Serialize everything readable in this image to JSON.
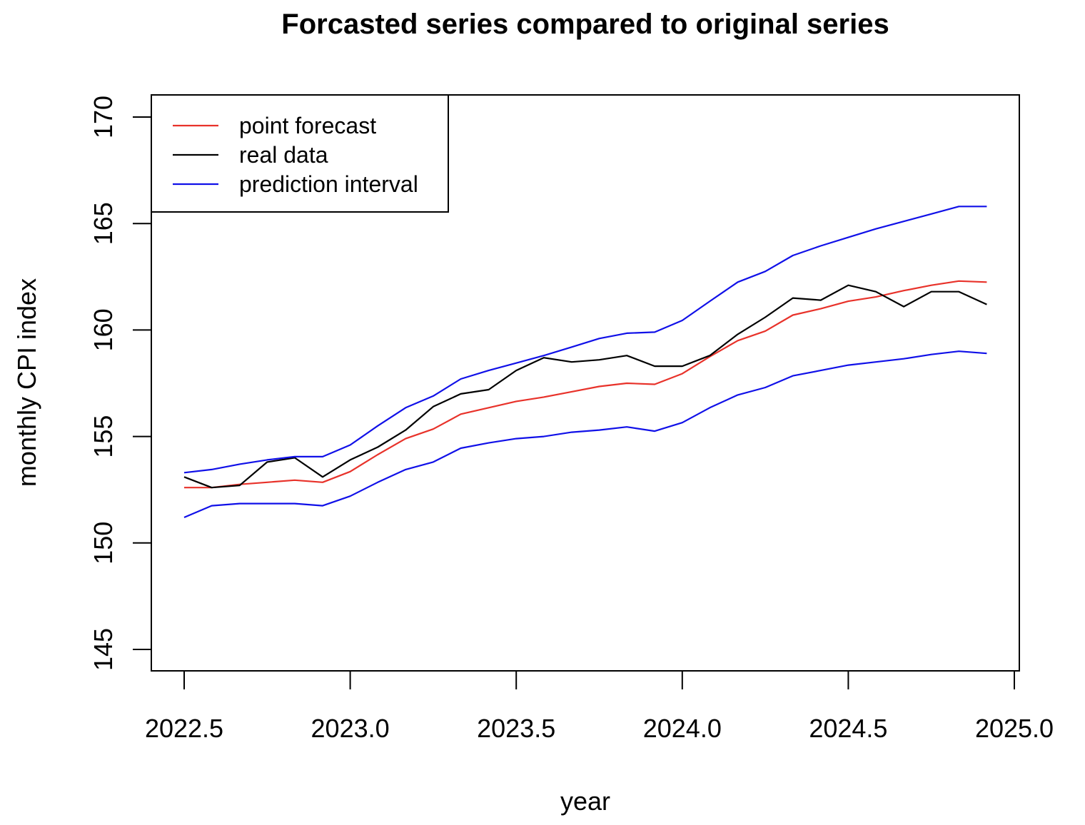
{
  "chart_data": {
    "type": "line",
    "title": "Forcasted series compared to original series",
    "xlabel": "year",
    "ylabel": "monthly CPI index",
    "xlim": [
      2022.5,
      2025.0
    ],
    "ylim": [
      145,
      170
    ],
    "xticks": [
      "2022.5",
      "2023.0",
      "2023.5",
      "2024.0",
      "2024.5",
      "2025.0"
    ],
    "yticks": [
      "145",
      "150",
      "155",
      "160",
      "165",
      "170"
    ],
    "grid": false,
    "legend": {
      "position": "top-left",
      "entries": [
        {
          "label": "point forecast",
          "color": "#e8322a"
        },
        {
          "label": "real data",
          "color": "#000000"
        },
        {
          "label": "prediction interval",
          "color": "#1010e8"
        }
      ]
    },
    "x": [
      2022.5,
      2022.583,
      2022.667,
      2022.75,
      2022.833,
      2022.917,
      2023.0,
      2023.083,
      2023.167,
      2023.25,
      2023.333,
      2023.417,
      2023.5,
      2023.583,
      2023.667,
      2023.75,
      2023.833,
      2023.917,
      2024.0,
      2024.083,
      2024.167,
      2024.25,
      2024.333,
      2024.417,
      2024.5,
      2024.583,
      2024.667,
      2024.75,
      2024.833,
      2024.917
    ],
    "series": [
      {
        "name": "point forecast",
        "color": "#e8322a",
        "values": [
          152.6,
          152.6,
          152.75,
          152.85,
          152.95,
          152.85,
          153.35,
          154.15,
          154.9,
          155.35,
          156.05,
          156.35,
          156.65,
          156.85,
          157.1,
          157.35,
          157.5,
          157.45,
          157.95,
          158.75,
          159.5,
          159.95,
          160.7,
          161.0,
          161.35,
          161.55,
          161.85,
          162.1,
          162.3,
          162.25
        ]
      },
      {
        "name": "real data",
        "color": "#000000",
        "values": [
          153.1,
          152.6,
          152.7,
          153.8,
          154.0,
          153.1,
          153.9,
          154.5,
          155.3,
          156.4,
          157.0,
          157.2,
          158.1,
          158.7,
          158.5,
          158.6,
          158.8,
          158.3,
          158.3,
          158.8,
          159.8,
          160.6,
          161.5,
          161.4,
          162.1,
          161.8,
          161.1,
          161.8,
          161.8,
          161.2
        ]
      },
      {
        "name": "prediction interval",
        "color": "#1010e8",
        "values": [
          153.3,
          153.45,
          153.7,
          153.9,
          154.05,
          154.05,
          154.6,
          155.5,
          156.35,
          156.9,
          157.7,
          158.1,
          158.45,
          158.8,
          159.2,
          159.6,
          159.85,
          159.9,
          160.45,
          161.35,
          162.25,
          162.75,
          163.5,
          163.95,
          164.35,
          164.75,
          165.1,
          165.45,
          165.8,
          165.8
        ]
      },
      {
        "name": "prediction interval",
        "color": "#1010e8",
        "values": [
          151.2,
          151.75,
          151.85,
          151.85,
          151.85,
          151.75,
          152.2,
          152.85,
          153.45,
          153.8,
          154.45,
          154.7,
          154.9,
          155.0,
          155.2,
          155.3,
          155.45,
          155.25,
          155.65,
          156.35,
          156.95,
          157.3,
          157.85,
          158.1,
          158.35,
          158.5,
          158.65,
          158.85,
          159.0,
          158.9
        ]
      }
    ]
  }
}
